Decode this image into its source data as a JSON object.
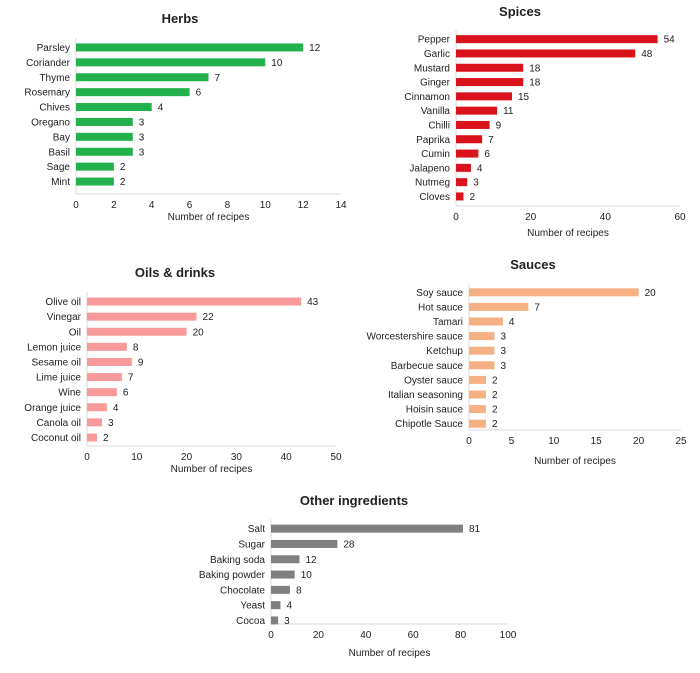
{
  "chart_data": [
    {
      "id": "herbs",
      "type": "bar",
      "orientation": "horizontal",
      "title": "Herbs",
      "xlabel": "Number of recipes",
      "ylabel": "",
      "color": "#22b14c",
      "xlim": [
        0,
        14
      ],
      "ticks": [
        0,
        2,
        4,
        6,
        8,
        10,
        12,
        14
      ],
      "categories": [
        "Parsley",
        "Coriander",
        "Thyme",
        "Rosemary",
        "Chives",
        "Oregano",
        "Bay",
        "Basil",
        "Sage",
        "Mint"
      ],
      "values": [
        12,
        10,
        7,
        6,
        4,
        3,
        3,
        3,
        2,
        2
      ]
    },
    {
      "id": "spices",
      "type": "bar",
      "orientation": "horizontal",
      "title": "Spices",
      "xlabel": "Number of recipes",
      "ylabel": "",
      "color": "#d9121c",
      "xlim": [
        0,
        60
      ],
      "ticks": [
        0,
        20,
        40,
        60
      ],
      "categories": [
        "Pepper",
        "Garlic",
        "Mustard",
        "Ginger",
        "Cinnamon",
        "Vanilla",
        "Chilli",
        "Paprika",
        "Cumin",
        "Jalapeno",
        "Nutmeg",
        "Cloves"
      ],
      "values": [
        54,
        48,
        18,
        18,
        15,
        11,
        9,
        7,
        6,
        4,
        3,
        2
      ]
    },
    {
      "id": "oils",
      "type": "bar",
      "orientation": "horizontal",
      "title": "Oils & drinks",
      "xlabel": "Number of recipes",
      "ylabel": "",
      "color": "#f99a9a",
      "xlim": [
        0,
        50
      ],
      "ticks": [
        0,
        10,
        20,
        30,
        40,
        50
      ],
      "categories": [
        "Olive oil",
        "Vinegar",
        "Oil",
        "Lemon juice",
        "Sesame oil",
        "Lime juice",
        "Wine",
        "Orange juice",
        "Canola oil",
        "Coconut oil"
      ],
      "values": [
        43,
        22,
        20,
        8,
        9,
        7,
        6,
        4,
        3,
        2
      ]
    },
    {
      "id": "sauces",
      "type": "bar",
      "orientation": "horizontal",
      "title": "Sauces",
      "xlabel": "Number of recipes",
      "ylabel": "",
      "color": "#f5b183",
      "xlim": [
        0,
        25
      ],
      "ticks": [
        0,
        5,
        10,
        15,
        20,
        25
      ],
      "categories": [
        "Soy sauce",
        "Hot sauce",
        "Tamari",
        "Worcestershire sauce",
        "Ketchup",
        "Barbecue sauce",
        "Oyster sauce",
        "Italian seasoning",
        "Hoisin sauce",
        "Chipotle Sauce"
      ],
      "values": [
        20,
        7,
        4,
        3,
        3,
        3,
        2,
        2,
        2,
        2
      ]
    },
    {
      "id": "other",
      "type": "bar",
      "orientation": "horizontal",
      "title": "Other ingredients",
      "xlabel": "Number of recipes",
      "ylabel": "",
      "color": "#808080",
      "xlim": [
        0,
        100
      ],
      "ticks": [
        0,
        20,
        40,
        60,
        80,
        100
      ],
      "categories": [
        "Salt",
        "Sugar",
        "Baking soda",
        "Baking powder",
        "Chocolate",
        "Yeast",
        "Cocoa"
      ],
      "values": [
        81,
        28,
        12,
        10,
        8,
        4,
        3
      ]
    }
  ]
}
